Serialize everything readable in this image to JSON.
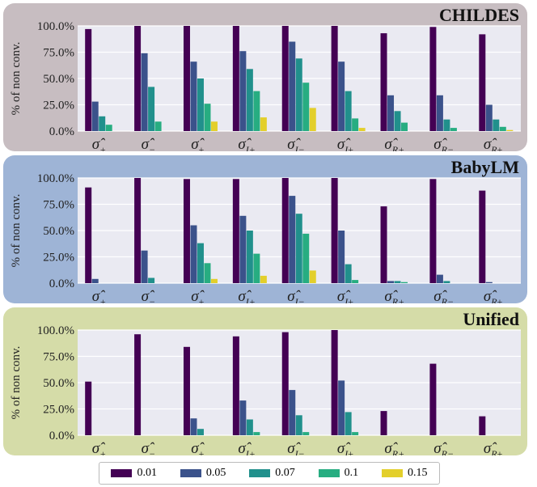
{
  "chart_data": [
    {
      "type": "bar",
      "title": "CHILDES",
      "ylabel": "% of non conv.",
      "ylim": [
        0,
        100
      ],
      "yticks": [
        "0.0%",
        "25.0%",
        "50.0%",
        "75.0%",
        "100.0%"
      ],
      "categories": [
        "σ+",
        "σ−",
        "σ±",
        "σI+",
        "σI−",
        "σI±",
        "σR+",
        "σR−",
        "σR±"
      ],
      "series": [
        {
          "name": "0.01",
          "values": [
            97,
            100,
            100,
            100,
            100,
            100,
            93,
            99,
            92
          ]
        },
        {
          "name": "0.05",
          "values": [
            28,
            74,
            66,
            76,
            85,
            66,
            34,
            34,
            25
          ]
        },
        {
          "name": "0.07",
          "values": [
            14,
            42,
            50,
            59,
            69,
            38,
            19,
            11,
            11
          ]
        },
        {
          "name": "0.1",
          "values": [
            6,
            9,
            26,
            38,
            46,
            12,
            8,
            3,
            4
          ]
        },
        {
          "name": "0.15",
          "values": [
            0,
            0,
            9,
            13,
            22,
            3,
            0,
            0,
            1
          ]
        }
      ]
    },
    {
      "type": "bar",
      "title": "BabyLM",
      "ylabel": "% of non conv.",
      "ylim": [
        0,
        100
      ],
      "yticks": [
        "0.0%",
        "25.0%",
        "50.0%",
        "75.0%",
        "100.0%"
      ],
      "categories": [
        "σ+",
        "σ−",
        "σ±",
        "σI+",
        "σI−",
        "σI±",
        "σR+",
        "σR−",
        "σR±"
      ],
      "series": [
        {
          "name": "0.01",
          "values": [
            91,
            100,
            99,
            99,
            100,
            100,
            73,
            99,
            88
          ]
        },
        {
          "name": "0.05",
          "values": [
            4,
            31,
            55,
            64,
            83,
            50,
            2,
            8,
            1
          ]
        },
        {
          "name": "0.07",
          "values": [
            0,
            5,
            38,
            50,
            66,
            18,
            2,
            2,
            0
          ]
        },
        {
          "name": "0.1",
          "values": [
            0,
            0,
            19,
            28,
            47,
            3,
            1,
            0,
            0
          ]
        },
        {
          "name": "0.15",
          "values": [
            0,
            0,
            4,
            7,
            12,
            0,
            0,
            0,
            0
          ]
        }
      ]
    },
    {
      "type": "bar",
      "title": "Unified",
      "ylabel": "% of non conv.",
      "ylim": [
        0,
        100
      ],
      "yticks": [
        "0.0%",
        "25.0%",
        "50.0%",
        "75.0%",
        "100.0%"
      ],
      "categories": [
        "σ+",
        "σ−",
        "σ±",
        "σI+",
        "σI−",
        "σI±",
        "σR+",
        "σR−",
        "σR±"
      ],
      "series": [
        {
          "name": "0.01",
          "values": [
            51,
            96,
            84,
            94,
            98,
            100,
            23,
            68,
            18
          ]
        },
        {
          "name": "0.05",
          "values": [
            0,
            0,
            16,
            33,
            43,
            52,
            0,
            0,
            0
          ]
        },
        {
          "name": "0.07",
          "values": [
            0,
            0,
            6,
            15,
            19,
            22,
            0,
            0,
            0
          ]
        },
        {
          "name": "0.1",
          "values": [
            0,
            0,
            0,
            3,
            3,
            3,
            0,
            0,
            0
          ]
        },
        {
          "name": "0.15",
          "values": [
            0,
            0,
            0,
            0,
            0,
            0,
            0,
            0,
            0
          ]
        }
      ]
    }
  ],
  "legend": [
    {
      "label": "0.01",
      "color": "#440154"
    },
    {
      "label": "0.05",
      "color": "#3b528b"
    },
    {
      "label": "0.07",
      "color": "#21908c"
    },
    {
      "label": "0.1",
      "color": "#27ad81"
    },
    {
      "label": "0.15",
      "color": "#e3cf2b"
    }
  ],
  "colors": {
    "plot_bg": "#eaeaf2",
    "grid": "#ffffff"
  }
}
